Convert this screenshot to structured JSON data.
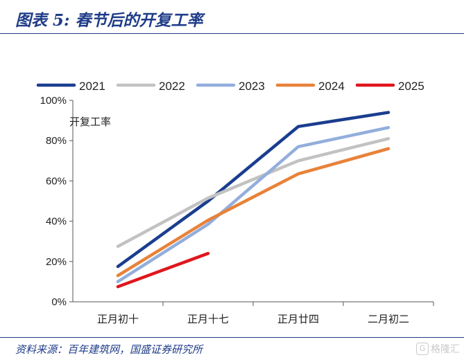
{
  "header": {
    "title": "图表 5: 春节后的开复工率"
  },
  "footer": {
    "source": "资料来源：百年建筑网，国盛证券研究所",
    "watermark": "格隆汇"
  },
  "chart_data": {
    "type": "line",
    "title": "图表 5: 春节后的开复工率",
    "ylabel": "开复工率",
    "xlabel": "",
    "categories": [
      "正月初十",
      "正月十七",
      "正月廿四",
      "二月初二"
    ],
    "ylim": [
      0,
      100
    ],
    "yticks": [
      "0%",
      "20%",
      "40%",
      "60%",
      "80%",
      "100%"
    ],
    "grid": false,
    "legend_position": "top",
    "series": [
      {
        "name": "2021",
        "color": "#1a3d8f",
        "values": [
          17.5,
          50,
          87,
          94
        ]
      },
      {
        "name": "2022",
        "color": "#c2c2c2",
        "values": [
          27.5,
          51.5,
          70,
          81
        ]
      },
      {
        "name": "2023",
        "color": "#92aedc",
        "values": [
          10,
          38.5,
          77,
          86.5
        ]
      },
      {
        "name": "2024",
        "color": "#e8823a",
        "values": [
          13,
          40.5,
          63.5,
          76
        ]
      },
      {
        "name": "2025",
        "color": "#e0161c",
        "values": [
          7.5,
          24,
          null,
          null
        ]
      }
    ]
  }
}
